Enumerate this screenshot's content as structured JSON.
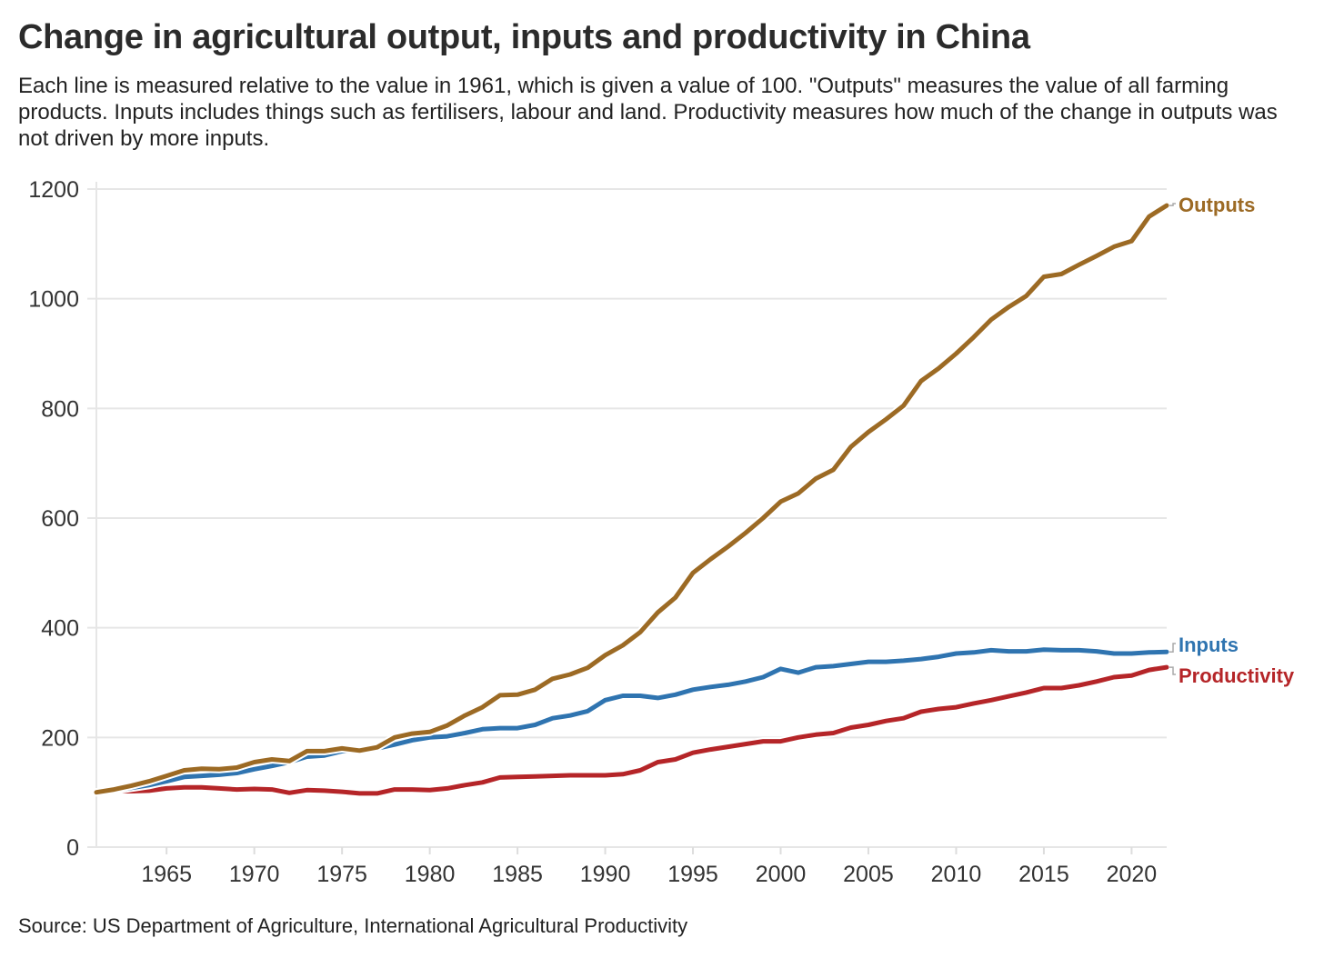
{
  "chart_data": {
    "type": "line",
    "title": "Change in agricultural output, inputs and productivity in China",
    "subtitle": "Each line is measured relative to the value in 1961, which is given a value of 100. \"Outputs\" measures the value of all farming products. Inputs includes things such as fertilisers, labour and land. Productivity measures how much of the change in outputs was not driven by more inputs.",
    "source": "Source: US Department of Agriculture, International Agricultural Productivity",
    "xlabel": "",
    "ylabel": "",
    "xlim": [
      1961,
      2022
    ],
    "ylim": [
      0,
      1200
    ],
    "yticks": [
      0,
      200,
      400,
      600,
      800,
      1000,
      1200
    ],
    "xticks": [
      1965,
      1970,
      1975,
      1980,
      1985,
      1990,
      1995,
      2000,
      2005,
      2010,
      2015,
      2020
    ],
    "grid": true,
    "legend": "direct labels at right end of lines",
    "x": [
      1961,
      1962,
      1963,
      1964,
      1965,
      1966,
      1967,
      1968,
      1969,
      1970,
      1971,
      1972,
      1973,
      1974,
      1975,
      1976,
      1977,
      1978,
      1979,
      1980,
      1981,
      1982,
      1983,
      1984,
      1985,
      1986,
      1987,
      1988,
      1989,
      1990,
      1991,
      1992,
      1993,
      1994,
      1995,
      1996,
      1997,
      1998,
      1999,
      2000,
      2001,
      2002,
      2003,
      2004,
      2005,
      2006,
      2007,
      2008,
      2009,
      2010,
      2011,
      2012,
      2013,
      2014,
      2015,
      2016,
      2017,
      2018,
      2019,
      2020,
      2021,
      2022
    ],
    "series": [
      {
        "name": "Outputs",
        "color": "#9c6a24",
        "values": [
          100,
          105,
          112,
          120,
          130,
          140,
          143,
          142,
          145,
          155,
          160,
          157,
          175,
          175,
          180,
          176,
          182,
          200,
          207,
          210,
          222,
          240,
          255,
          277,
          278,
          287,
          307,
          315,
          327,
          350,
          368,
          392,
          428,
          455,
          500,
          525,
          548,
          573,
          600,
          630,
          645,
          672,
          688,
          730,
          757,
          780,
          805,
          850,
          873,
          900,
          930,
          962,
          985,
          1005,
          1040,
          1045,
          1062,
          1078,
          1095,
          1105,
          1150,
          1170
        ]
      },
      {
        "name": "Inputs",
        "color": "#2f74b0",
        "values": [
          100,
          103,
          108,
          113,
          120,
          128,
          130,
          132,
          135,
          142,
          148,
          155,
          165,
          167,
          175,
          177,
          180,
          187,
          195,
          200,
          202,
          208,
          215,
          217,
          217,
          223,
          235,
          240,
          248,
          268,
          276,
          276,
          272,
          278,
          287,
          292,
          296,
          302,
          310,
          325,
          318,
          328,
          330,
          334,
          338,
          338,
          340,
          343,
          347,
          353,
          355,
          359,
          357,
          357,
          360,
          359,
          359,
          357,
          353,
          353,
          355,
          356
        ]
      },
      {
        "name": "Productivity",
        "color": "#b52528",
        "values": [
          100,
          102,
          102,
          103,
          107,
          109,
          109,
          107,
          105,
          106,
          105,
          99,
          104,
          103,
          101,
          98,
          98,
          105,
          105,
          104,
          107,
          113,
          118,
          127,
          128,
          129,
          130,
          131,
          131,
          131,
          133,
          140,
          155,
          160,
          172,
          178,
          183,
          188,
          193,
          193,
          200,
          205,
          208,
          218,
          223,
          230,
          235,
          247,
          252,
          255,
          262,
          268,
          275,
          282,
          290,
          290,
          295,
          302,
          310,
          313,
          323,
          328
        ]
      }
    ]
  }
}
